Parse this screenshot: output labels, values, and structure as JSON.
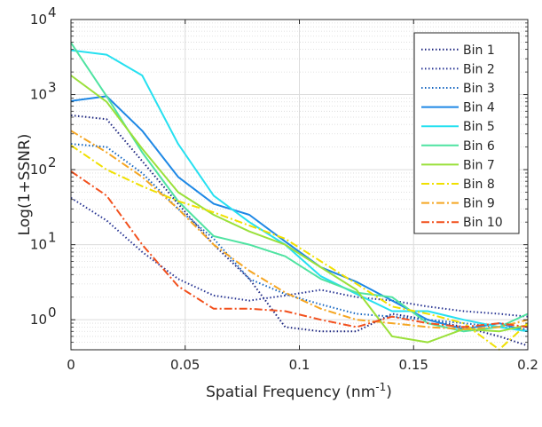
{
  "chart_data": {
    "type": "line",
    "xlabel": "Spatial Frequency (nm",
    "xlabel_sup": "-1",
    "xlabel_suffix": ")",
    "ylabel": "Log(1+SSNR)",
    "xlim": [
      0,
      0.2
    ],
    "ylim_log10": [
      -0.4,
      4
    ],
    "yscale": "log",
    "grid": true,
    "legend_position": "top-right",
    "x_ticks": [
      0,
      0.05,
      0.1,
      0.15,
      0.2
    ],
    "x_tick_labels": [
      "0",
      "0.05",
      "0.1",
      "0.15",
      "0.2"
    ],
    "y_ticks": [
      1,
      10,
      100,
      1000,
      10000
    ],
    "y_tick_labels": [
      {
        "base": "10",
        "exp": "0"
      },
      {
        "base": "10",
        "exp": "1"
      },
      {
        "base": "10",
        "exp": "2"
      },
      {
        "base": "10",
        "exp": "3"
      },
      {
        "base": "10",
        "exp": "4"
      }
    ],
    "x": [
      0,
      0.0156,
      0.0312,
      0.0469,
      0.0625,
      0.0781,
      0.0938,
      0.1094,
      0.125,
      0.1406,
      0.1562,
      0.1719,
      0.1875,
      0.2
    ],
    "series": [
      {
        "name": "Bin 1",
        "color": "#1a237e",
        "dash": "dotted",
        "values": [
          530,
          470,
          130,
          35,
          10,
          3.5,
          0.8,
          0.7,
          0.7,
          1.2,
          1.0,
          0.8,
          0.6,
          0.45
        ]
      },
      {
        "name": "Bin 2",
        "color": "#283593",
        "dash": "dotted",
        "values": [
          42,
          21,
          8,
          3.5,
          2.1,
          1.8,
          2.1,
          2.5,
          2.0,
          1.8,
          1.5,
          1.3,
          1.2,
          1.1
        ]
      },
      {
        "name": "Bin 3",
        "color": "#1565c0",
        "dash": "dotted",
        "values": [
          220,
          200,
          90,
          30,
          12,
          3.5,
          2.2,
          1.6,
          1.2,
          1.1,
          1.0,
          0.9,
          0.8,
          0.75
        ]
      },
      {
        "name": "Bin 4",
        "color": "#1e88e5",
        "dash": "solid",
        "values": [
          820,
          950,
          330,
          80,
          35,
          25,
          11,
          5.0,
          3.2,
          1.8,
          1.0,
          0.75,
          0.9,
          0.7
        ]
      },
      {
        "name": "Bin 5",
        "color": "#26e0f0",
        "dash": "solid",
        "values": [
          3900,
          3400,
          1800,
          220,
          45,
          20,
          10,
          3.8,
          2.2,
          1.3,
          1.3,
          1.0,
          0.8,
          0.7
        ]
      },
      {
        "name": "Bin 6",
        "color": "#4fe3a1",
        "dash": "solid",
        "values": [
          4900,
          950,
          170,
          38,
          13,
          10,
          7,
          3.5,
          2.3,
          2.0,
          0.9,
          0.7,
          0.8,
          1.2
        ]
      },
      {
        "name": "Bin 7",
        "color": "#9ae03a",
        "dash": "solid",
        "values": [
          1800,
          800,
          190,
          50,
          25,
          15,
          10,
          5.0,
          2.5,
          0.6,
          0.5,
          0.75,
          0.7,
          0.85
        ]
      },
      {
        "name": "Bin 8",
        "color": "#f0e000",
        "dash": "dashdot",
        "values": [
          210,
          100,
          60,
          38,
          27,
          18,
          12,
          6.0,
          3.0,
          1.5,
          1.2,
          0.9,
          0.4,
          0.9
        ]
      },
      {
        "name": "Bin 9",
        "color": "#f5a623",
        "dash": "dashdot",
        "values": [
          330,
          170,
          80,
          30,
          10,
          4.5,
          2.3,
          1.4,
          1.0,
          0.9,
          0.8,
          0.75,
          0.8,
          1.0
        ]
      },
      {
        "name": "Bin 10",
        "color": "#f2501d",
        "dash": "dashdot",
        "values": [
          95,
          45,
          10,
          2.8,
          1.4,
          1.4,
          1.3,
          1.0,
          0.8,
          1.1,
          0.9,
          0.8,
          0.9,
          0.8
        ]
      }
    ]
  }
}
